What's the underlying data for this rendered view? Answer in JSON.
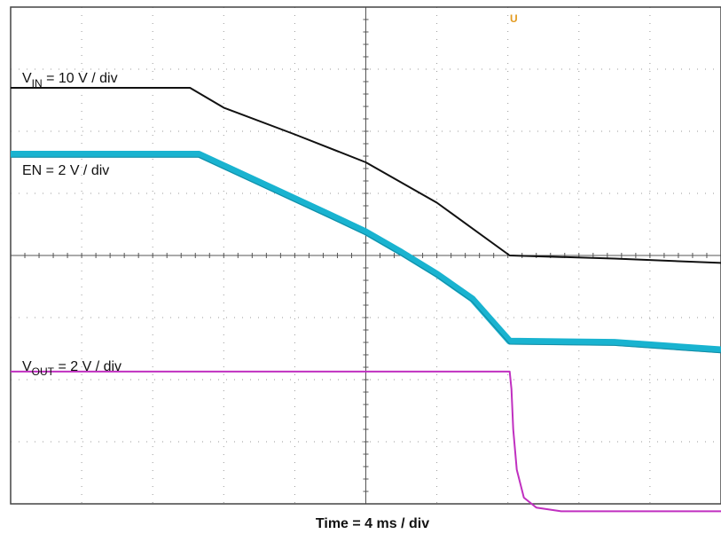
{
  "chart_data": {
    "type": "line",
    "xlabel": "Time  = 4 ms / div",
    "x_divisions": 10,
    "y_divisions": 8,
    "grid": true,
    "series": [
      {
        "name": "VIN",
        "label_main": "V",
        "label_sub": "IN",
        "label_rest": " = 10 V / div",
        "color": "#111111",
        "points": [
          [
            0,
            6.7
          ],
          [
            5.05,
            6.7
          ],
          [
            6.0,
            6.38
          ],
          [
            8.0,
            5.95
          ],
          [
            10.0,
            5.5
          ],
          [
            12.0,
            4.85
          ],
          [
            14.05,
            4.0
          ],
          [
            17.0,
            3.95
          ],
          [
            20.0,
            3.88
          ]
        ]
      },
      {
        "name": "EN",
        "label_main": "EN",
        "label_sub": "",
        "label_rest": " = 2 V / div",
        "color": "#19b3d0",
        "band": 0.22,
        "points": [
          [
            0,
            5.63
          ],
          [
            5.3,
            5.63
          ],
          [
            7.0,
            5.18
          ],
          [
            9.0,
            4.65
          ],
          [
            10.0,
            4.38
          ],
          [
            11.0,
            4.05
          ],
          [
            12.0,
            3.7
          ],
          [
            13.0,
            3.3
          ],
          [
            14.05,
            2.62
          ],
          [
            17.0,
            2.6
          ],
          [
            20.0,
            2.48
          ]
        ]
      },
      {
        "name": "VOUT",
        "label_main": "V",
        "label_sub": "OUT",
        "label_rest": "  = 2 V / div",
        "color": "#c030c0",
        "points": [
          [
            0,
            2.13
          ],
          [
            14.05,
            2.13
          ],
          [
            14.1,
            1.85
          ],
          [
            14.15,
            1.2
          ],
          [
            14.25,
            0.55
          ],
          [
            14.45,
            0.1
          ],
          [
            14.8,
            -0.06
          ],
          [
            15.5,
            -0.12
          ],
          [
            20.0,
            -0.12
          ]
        ]
      }
    ]
  }
}
